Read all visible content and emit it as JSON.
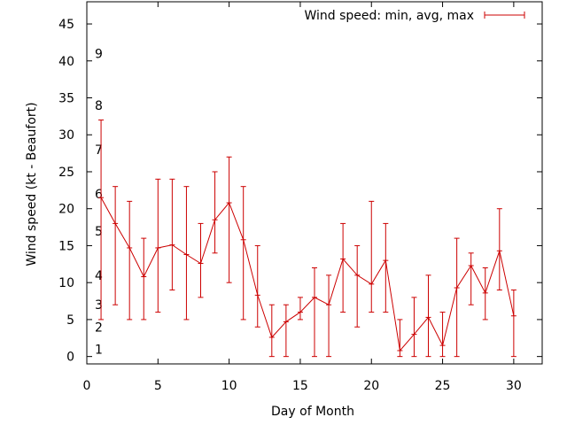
{
  "chart_data": {
    "type": "line",
    "xlabel": "Day of Month",
    "ylabel": "Wind speed (kt - Beaufort)",
    "xlim": [
      0,
      32
    ],
    "ylim": [
      -1,
      48
    ],
    "x_ticks": [
      0,
      5,
      10,
      15,
      20,
      25,
      30
    ],
    "y_ticks": [
      0,
      5,
      10,
      15,
      20,
      25,
      30,
      35,
      40,
      45
    ],
    "grid": false,
    "legend_position": "top-right",
    "beaufort_labels": [
      {
        "label": "1",
        "y": 1
      },
      {
        "label": "2",
        "y": 4
      },
      {
        "label": "3",
        "y": 7
      },
      {
        "label": "4",
        "y": 11
      },
      {
        "label": "5",
        "y": 17
      },
      {
        "label": "6",
        "y": 22
      },
      {
        "label": "7",
        "y": 28
      },
      {
        "label": "8",
        "y": 34
      },
      {
        "label": "9",
        "y": 41
      }
    ],
    "series": [
      {
        "name": "Wind speed: min, avg, max",
        "color": "#cc0000",
        "x": [
          1,
          2,
          3,
          4,
          5,
          6,
          7,
          8,
          9,
          10,
          11,
          12,
          13,
          14,
          15,
          16,
          17,
          18,
          19,
          20,
          21,
          22,
          23,
          24,
          25,
          26,
          27,
          28,
          29,
          30
        ],
        "avg": [
          21.5,
          18,
          14.7,
          10.8,
          14.7,
          15.1,
          13.8,
          12.6,
          18.5,
          20.8,
          15.8,
          8.3,
          2.6,
          4.7,
          6,
          8,
          7,
          13.2,
          11,
          9.8,
          13,
          0.8,
          3,
          5.3,
          1.5,
          9.3,
          12.3,
          8.6,
          14.3,
          5.5
        ],
        "min": [
          5,
          7,
          5,
          5,
          6,
          9,
          5,
          8,
          14,
          10,
          5,
          4,
          0,
          0,
          5,
          0,
          0,
          6,
          4,
          6,
          6,
          0,
          0,
          0,
          0,
          0,
          7,
          5,
          9,
          0
        ],
        "max": [
          32,
          23,
          21,
          16,
          24,
          24,
          23,
          18,
          25,
          27,
          23,
          15,
          7,
          7,
          8,
          12,
          11,
          18,
          15,
          21,
          18,
          5,
          8,
          11,
          6,
          16,
          14,
          12,
          20,
          9
        ]
      }
    ]
  }
}
